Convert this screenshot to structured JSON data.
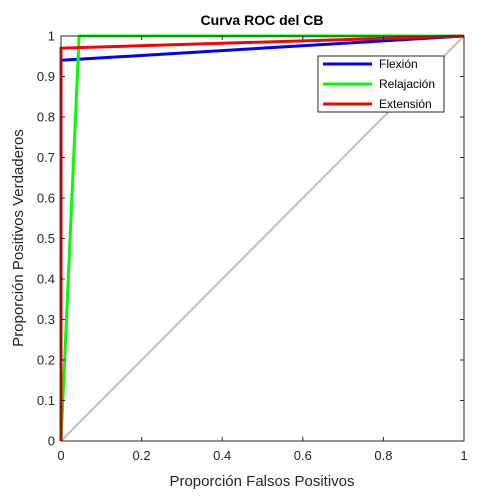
{
  "chart_data": {
    "type": "line",
    "title": "Curva ROC del CB",
    "xlabel": "Proporción Falsos Positivos",
    "ylabel": "Proporción Positivos Verdaderos",
    "xlim": [
      0,
      1
    ],
    "ylim": [
      0,
      1
    ],
    "xticks": [
      "0",
      "0.2",
      "0.4",
      "0.6",
      "0.8",
      "1"
    ],
    "yticks": [
      "0",
      "0.1",
      "0.2",
      "0.3",
      "0.4",
      "0.5",
      "0.6",
      "0.7",
      "0.8",
      "0.9",
      "1"
    ],
    "grid": false,
    "legend_position": "top-right",
    "reference_line": {
      "x": [
        0,
        1
      ],
      "y": [
        0,
        1
      ],
      "color": "#c0c0c0"
    },
    "series": [
      {
        "name": "Flexión",
        "color": "#0000ff",
        "x": [
          0,
          0,
          1
        ],
        "y": [
          0,
          0.94,
          1
        ]
      },
      {
        "name": "Relajación",
        "color": "#00ff00",
        "x": [
          0,
          0.045,
          1
        ],
        "y": [
          0,
          1,
          1
        ]
      },
      {
        "name": "Extensión",
        "color": "#ff0000",
        "x": [
          0,
          0,
          1
        ],
        "y": [
          0,
          0.97,
          1
        ]
      }
    ]
  }
}
